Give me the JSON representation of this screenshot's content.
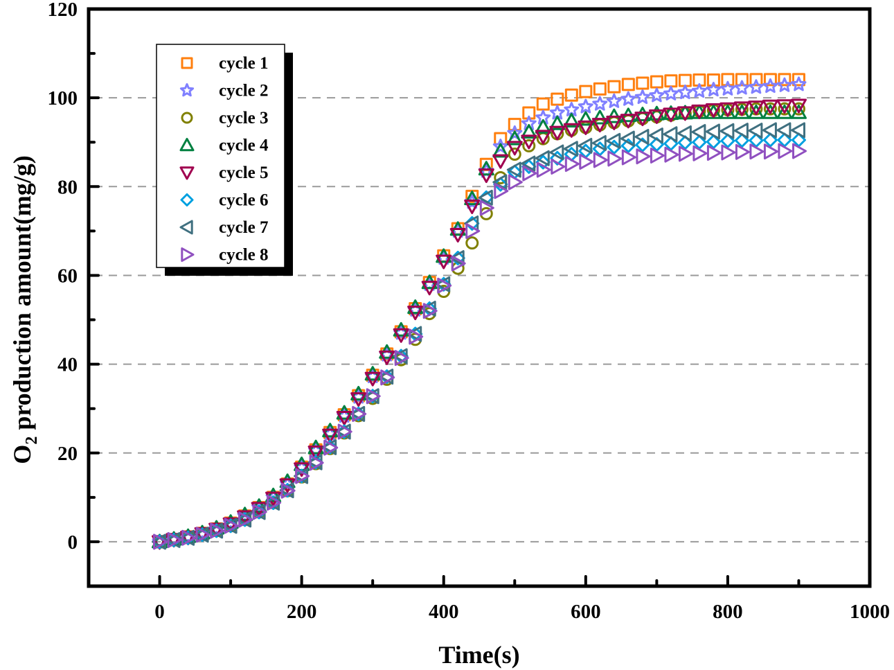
{
  "chart_data": {
    "type": "scatter",
    "title": "",
    "xlabel": "Time(s)",
    "ylabel_main": "O",
    "ylabel_sub": "2",
    "ylabel_rest": " production amount(mg/g)",
    "ylabel": "O2 production amount(mg/g)",
    "xlim": [
      -100,
      1000
    ],
    "ylim": [
      -10,
      120
    ],
    "xticks": [
      0,
      200,
      400,
      600,
      800,
      1000
    ],
    "xtick_labels": [
      "0",
      "200",
      "400",
      "600",
      "800",
      "1000"
    ],
    "x_minor_ticks": [
      100,
      300,
      500,
      700,
      900
    ],
    "yticks": [
      0,
      20,
      40,
      60,
      80,
      100,
      120
    ],
    "ytick_labels": [
      "0",
      "20",
      "40",
      "60",
      "80",
      "100",
      "120"
    ],
    "y_minor_ticks": [
      10,
      30,
      50,
      70,
      90,
      110
    ],
    "grid": "horizontal dashed at major y ticks",
    "legend_position": "top-left",
    "x": [
      0,
      20,
      40,
      60,
      80,
      100,
      120,
      140,
      160,
      180,
      200,
      220,
      240,
      260,
      280,
      300,
      320,
      340,
      360,
      380,
      400,
      420,
      440,
      460,
      480,
      500,
      520,
      540,
      560,
      580,
      600,
      620,
      640,
      660,
      680,
      700,
      720,
      740,
      760,
      780,
      800,
      820,
      840,
      860,
      880,
      900
    ],
    "series": [
      {
        "name": "cycle 1",
        "marker": "square",
        "color": "#FF7F0E",
        "values": [
          0,
          0.5,
          1.1,
          1.9,
          2.9,
          4.2,
          5.8,
          7.7,
          10,
          13,
          16.8,
          20.7,
          24.6,
          28.6,
          32.9,
          37.5,
          42.3,
          47.3,
          52.5,
          58.4,
          64.4,
          70.5,
          77.8,
          85,
          90.8,
          94,
          96.6,
          98.6,
          99.7,
          100.6,
          101.4,
          102,
          102.5,
          103,
          103.3,
          103.6,
          103.8,
          103.9,
          104,
          104,
          104.1,
          104.1,
          104.1,
          104.1,
          104.1,
          104.1
        ]
      },
      {
        "name": "cycle 2",
        "marker": "star",
        "color": "#8080FF",
        "values": [
          0,
          0.5,
          1.1,
          1.9,
          2.9,
          4.2,
          5.8,
          7.7,
          10,
          13,
          16.7,
          20.5,
          24.3,
          28.3,
          32.6,
          37.2,
          42.1,
          47,
          52.2,
          58,
          63.9,
          70,
          76.5,
          83.5,
          89,
          92,
          94.2,
          95.5,
          96.6,
          97.3,
          98,
          98.6,
          99.2,
          99.7,
          100.1,
          100.5,
          100.9,
          101.2,
          101.5,
          101.8,
          102,
          102.2,
          102.4,
          102.6,
          102.8,
          103
        ]
      },
      {
        "name": "cycle 3",
        "marker": "circle",
        "color": "#808000",
        "values": [
          0,
          0.4,
          0.9,
          1.6,
          2.5,
          3.6,
          5,
          6.7,
          8.8,
          11.5,
          14.6,
          17.6,
          21,
          24.5,
          28.4,
          32.3,
          36.6,
          41,
          45.6,
          51.4,
          56.4,
          61.6,
          67.3,
          73.9,
          82,
          87.3,
          89.2,
          90.8,
          91.9,
          92.7,
          93.3,
          93.9,
          94.4,
          94.8,
          95.3,
          95.7,
          96.1,
          96.5,
          97,
          97.2,
          97.3,
          97.4,
          97.5,
          97.5,
          97.5,
          97.5
        ]
      },
      {
        "name": "cycle 4",
        "marker": "triangle-up",
        "color": "#008040",
        "values": [
          0,
          0.6,
          1.2,
          2,
          3.1,
          4.4,
          6.1,
          8,
          10.4,
          13.6,
          17.4,
          21.2,
          25,
          29,
          33.3,
          37.8,
          42.7,
          47.7,
          52.8,
          58.4,
          64.3,
          70.4,
          77.3,
          84,
          88,
          90.8,
          92.3,
          93.4,
          94.2,
          94.8,
          95.2,
          95.5,
          95.8,
          96,
          96.2,
          96.4,
          96.5,
          96.6,
          96.7,
          96.7,
          96.7,
          96.7,
          96.7,
          96.7,
          96.7,
          96.7
        ]
      },
      {
        "name": "cycle 5",
        "marker": "triangle-down",
        "color": "#A0004F",
        "values": [
          0,
          0.5,
          1,
          1.8,
          2.8,
          4,
          5.6,
          7.5,
          9.8,
          12.8,
          16.4,
          20.2,
          24,
          28,
          32.2,
          36.8,
          41.6,
          46.6,
          51.7,
          57.3,
          63.2,
          69.2,
          75.6,
          82.6,
          85.8,
          88.8,
          90.2,
          91.3,
          92.2,
          92.8,
          93.4,
          94,
          94.5,
          94.9,
          95.4,
          95.9,
          96.3,
          96.6,
          97,
          97.3,
          97.5,
          97.7,
          97.9,
          98.1,
          98.2,
          98.3
        ]
      },
      {
        "name": "cycle 6",
        "marker": "diamond",
        "color": "#00A0E0",
        "values": [
          0,
          0.4,
          0.9,
          1.6,
          2.5,
          3.6,
          5,
          6.7,
          8.8,
          11.6,
          14.8,
          17.9,
          21.3,
          24.8,
          28.8,
          32.8,
          37.2,
          41.8,
          46.8,
          52.5,
          58,
          63.9,
          71.7,
          77.5,
          80.5,
          83.3,
          84.5,
          85.5,
          86.4,
          87.3,
          88,
          88.5,
          88.9,
          89.2,
          89.4,
          89.5,
          89.7,
          89.9,
          90,
          90.1,
          90.3,
          90.4,
          90.4,
          90.5,
          90.5,
          90.5
        ]
      },
      {
        "name": "cycle 7",
        "marker": "triangle-left",
        "color": "#407080",
        "values": [
          0,
          0.4,
          0.9,
          1.6,
          2.5,
          3.6,
          5,
          6.7,
          8.8,
          11.6,
          14.8,
          17.9,
          21.3,
          24.8,
          28.8,
          32.8,
          37.2,
          41.8,
          46.8,
          52.5,
          58,
          63.9,
          71.7,
          77.5,
          81,
          83.8,
          85.2,
          86.4,
          87.7,
          88.5,
          89.2,
          89.8,
          90.3,
          90.8,
          91.2,
          91.5,
          91.8,
          92,
          92.3,
          92.4,
          92.5,
          92.6,
          92.6,
          92.7,
          92.7,
          92.7
        ]
      },
      {
        "name": "cycle 8",
        "marker": "triangle-right",
        "color": "#9050C0",
        "values": [
          0,
          0.4,
          0.9,
          1.6,
          2.5,
          3.6,
          5,
          6.7,
          8.8,
          11.5,
          14.8,
          17.8,
          21.2,
          24.8,
          28.8,
          32.8,
          37,
          41.4,
          46.2,
          52,
          57.7,
          62.7,
          70,
          75.2,
          79,
          81,
          83,
          83.8,
          84.5,
          85.1,
          85.6,
          86,
          86.3,
          86.6,
          86.8,
          87,
          87.2,
          87.4,
          87.5,
          87.6,
          87.7,
          87.8,
          87.9,
          87.9,
          88,
          88
        ]
      }
    ]
  }
}
